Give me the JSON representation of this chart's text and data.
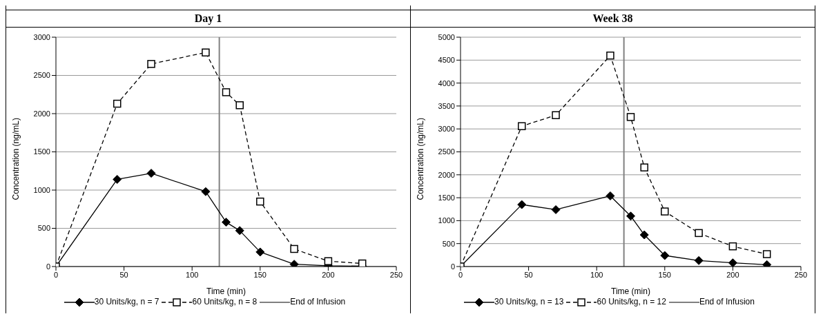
{
  "chart_data": [
    {
      "type": "line",
      "title": "Day 1",
      "xlabel": "Time (min)",
      "ylabel": "Concentration (ng/mL)",
      "x": [
        0,
        45,
        70,
        110,
        125,
        135,
        150,
        175,
        200,
        225
      ],
      "xlim": [
        0,
        250
      ],
      "xticks": [
        0,
        50,
        100,
        150,
        200,
        250
      ],
      "ylim": [
        0,
        3000
      ],
      "yticks": [
        0,
        500,
        1000,
        1500,
        2000,
        2500,
        3000
      ],
      "grid": "y",
      "legend": "bottom",
      "series": [
        {
          "name": "30 Units/kg, n = 7",
          "color": "#000000",
          "marker": "diamond",
          "line_style": "solid",
          "values": [
            0,
            1140,
            1220,
            980,
            580,
            470,
            190,
            30,
            10,
            5
          ]
        },
        {
          "name": "60 Units/kg, n = 8",
          "color": "#000000",
          "marker": "square",
          "line_style": "dashed",
          "values": [
            0,
            2130,
            2650,
            2800,
            2280,
            2110,
            850,
            230,
            70,
            40
          ]
        }
      ],
      "ref_lines": [
        {
          "axis": "x",
          "value": 120,
          "label": "End of Infusion",
          "color": "#808080",
          "line_style": "solid"
        }
      ]
    },
    {
      "type": "line",
      "title": "Week 38",
      "xlabel": "Time (min)",
      "ylabel": "Concentration (ng/mL)",
      "x": [
        0,
        45,
        70,
        110,
        125,
        135,
        150,
        175,
        200,
        225
      ],
      "xlim": [
        0,
        250
      ],
      "xticks": [
        0,
        50,
        100,
        150,
        200,
        250
      ],
      "ylim": [
        0,
        5000
      ],
      "yticks": [
        0,
        500,
        1000,
        1500,
        2000,
        2500,
        3000,
        3500,
        4000,
        4500,
        5000
      ],
      "grid": "y",
      "legend": "bottom",
      "series": [
        {
          "name": "30 Units/kg, n = 13",
          "color": "#000000",
          "marker": "diamond",
          "line_style": "solid",
          "values": [
            0,
            1350,
            1240,
            1540,
            1100,
            690,
            240,
            130,
            80,
            40
          ]
        },
        {
          "name": "60 Units/kg, n = 12",
          "color": "#000000",
          "marker": "square",
          "line_style": "dashed",
          "values": [
            0,
            3060,
            3300,
            4600,
            3260,
            2160,
            1200,
            730,
            440,
            270
          ]
        }
      ],
      "ref_lines": [
        {
          "axis": "x",
          "value": 120,
          "label": "End of Infusion",
          "color": "#808080",
          "line_style": "solid"
        }
      ]
    }
  ]
}
